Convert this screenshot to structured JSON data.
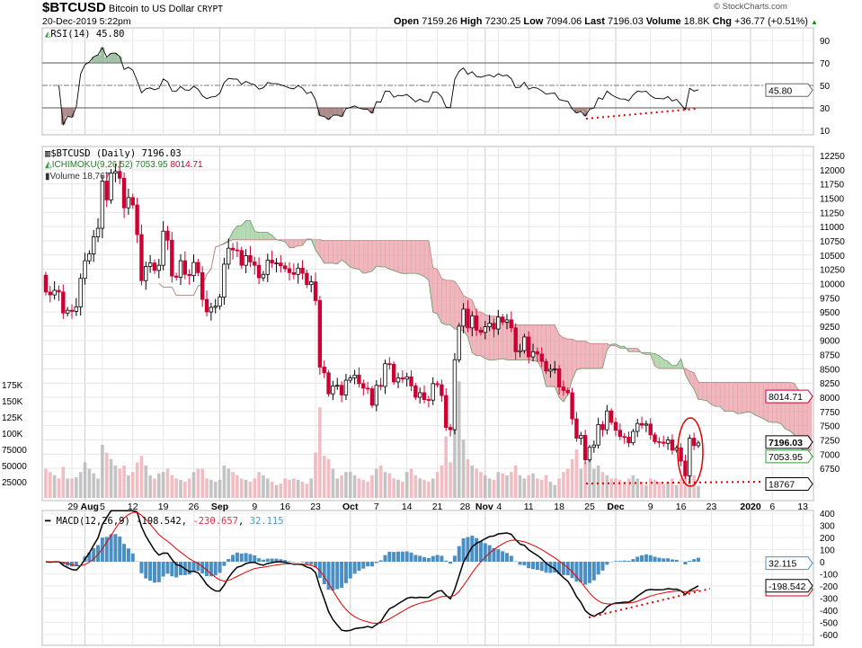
{
  "header": {
    "symbol": "$BTCUSD",
    "name": "Bitcoin to US Dollar",
    "exchange": "CRYPT",
    "datetime": "20-Dec-2019 5:22pm",
    "watermark": "© StockCharts.com",
    "open_label": "Open",
    "open": "7159.26",
    "high_label": "High",
    "high": "7230.25",
    "low_label": "Low",
    "low": "7094.06",
    "last_label": "Last",
    "last": "7196.03",
    "volume_label": "Volume",
    "volume": "18.8K",
    "chg_label": "Chg",
    "chg": "+36.77 (+0.51%)",
    "chg_icon": "up-triangle-icon"
  },
  "legends": {
    "rsi": "RSI(14) 45.80",
    "price": "$BTCUSD (Daily) 7196.03",
    "ichimoku_name": "ICHIMOKU(9,26,52)",
    "ichimoku_a": "7053.95",
    "ichimoku_b": "8014.71",
    "volume": "Volume 18,767",
    "macd_name": "MACD(12,26,9)",
    "macd_val": "-198.542",
    "macd_signal": "-230.657",
    "macd_hist": "32.115"
  },
  "tags": {
    "rsi": "45.80",
    "ichimoku_b": "8014.71",
    "last": "7196.03",
    "ichimoku_a": "7053.95",
    "volume": "18767",
    "macd_hist": "32.115",
    "macd": "-198.542"
  },
  "colors": {
    "up_candle": "#ffffff",
    "down_candle": "#cc0033",
    "cloud_bull": "#9fcf9f",
    "cloud_bear": "#e8a0a8",
    "volume_up": "#b8b8b8",
    "volume_down": "#f0b0b8",
    "macd_line": "#000000",
    "signal_line": "#e00000",
    "histogram": "#4a8fc4",
    "annotation": "#e00000"
  },
  "chart_data": {
    "type": "candlestick",
    "start_date": "2019-07-23",
    "end_date": "2019-12-20",
    "interval": "daily",
    "close": [
      9850,
      9800,
      9880,
      9850,
      9480,
      9530,
      9510,
      9590,
      10090,
      10400,
      10520,
      10820,
      10970,
      11800,
      11470,
      11940,
      11970,
      11850,
      11330,
      11510,
      11380,
      10860,
      10050,
      10300,
      10360,
      10230,
      10320,
      10920,
      10760,
      10130,
      10110,
      10400,
      10160,
      10140,
      10370,
      10190,
      9720,
      9500,
      9580,
      9600,
      9760,
      10340,
      10620,
      10590,
      10580,
      10320,
      10490,
      10380,
      10320,
      10100,
      10160,
      10410,
      10360,
      10360,
      10310,
      10260,
      10190,
      10160,
      10270,
      10180,
      9980,
      10030,
      9700,
      8530,
      8430,
      8060,
      8200,
      8210,
      8040,
      8300,
      8340,
      8390,
      8240,
      8160,
      8150,
      7860,
      8210,
      8190,
      8590,
      8580,
      8270,
      8340,
      8320,
      8360,
      8200,
      8000,
      8080,
      7960,
      7950,
      8240,
      8220,
      8030,
      7470,
      7430,
      8660,
      9250,
      9550,
      9220,
      9430,
      9180,
      9140,
      9240,
      9300,
      9200,
      9410,
      9320,
      9360,
      9220,
      8800,
      8820,
      9060,
      8710,
      8800,
      8760,
      8630,
      8460,
      8490,
      8500,
      8180,
      8120,
      8080,
      7620,
      7280,
      7330,
      6900,
      7120,
      7160,
      7520,
      7430,
      7760,
      7560,
      7420,
      7310,
      7300,
      7200,
      7400,
      7540,
      7510,
      7530,
      7340,
      7220,
      7210,
      7190,
      7250,
      7070,
      7110,
      6880,
      6620,
      7280,
      7150,
      7196.03
    ],
    "volume_thousands": [
      45,
      40,
      35,
      30,
      48,
      30,
      30,
      32,
      40,
      55,
      45,
      38,
      30,
      82,
      70,
      60,
      50,
      45,
      50,
      35,
      40,
      55,
      65,
      50,
      35,
      30,
      38,
      40,
      45,
      35,
      30,
      28,
      25,
      30,
      40,
      45,
      45,
      30,
      28,
      25,
      28,
      50,
      45,
      40,
      35,
      30,
      28,
      25,
      30,
      40,
      35,
      30,
      25,
      20,
      22,
      30,
      28,
      30,
      28,
      25,
      22,
      30,
      70,
      140,
      65,
      60,
      45,
      30,
      35,
      40,
      40,
      35,
      30,
      28,
      25,
      35,
      45,
      50,
      40,
      38,
      30,
      28,
      25,
      40,
      45,
      35,
      30,
      28,
      25,
      30,
      40,
      50,
      95,
      55,
      120,
      180,
      90,
      60,
      50,
      45,
      40,
      35,
      30,
      28,
      40,
      38,
      35,
      40,
      50,
      35,
      30,
      35,
      38,
      30,
      28,
      35,
      25,
      20,
      30,
      40,
      45,
      60,
      75,
      45,
      55,
      70,
      45,
      50,
      40,
      35,
      30,
      30,
      28,
      25,
      30,
      35,
      30,
      25,
      20,
      30,
      28,
      25,
      22,
      25,
      30,
      20,
      30,
      45,
      55,
      35,
      18.767
    ],
    "x_ticks": [
      "29",
      "Aug",
      "5",
      "12",
      "19",
      "26",
      "Sep",
      "9",
      "16",
      "23",
      "Oct",
      "7",
      "14",
      "21",
      "28",
      "Nov",
      "4",
      "11",
      "18",
      "25",
      "Dec",
      "9",
      "16",
      "23",
      "2020",
      "6",
      "13"
    ],
    "price_ticks": [
      "12250",
      "12000",
      "11750",
      "11500",
      "11250",
      "11000",
      "10750",
      "10500",
      "10250",
      "10000",
      "9750",
      "9500",
      "9250",
      "9000",
      "8750",
      "8500",
      "8250",
      "8000",
      "7750",
      "7500",
      "7250",
      "7000",
      "6750"
    ],
    "volume_ticks": [
      "175K",
      "150K",
      "125K",
      "100K",
      "75000",
      "50000",
      "25000"
    ],
    "rsi_ticks": [
      "90",
      "70",
      "50",
      "30",
      "10"
    ],
    "macd_ticks": [
      "400",
      "300",
      "200",
      "100",
      "0",
      "-100",
      "-200",
      "-300",
      "-400",
      "-500",
      "-600"
    ],
    "rsi_levels": [
      70,
      50,
      30
    ],
    "price_range": [
      6400,
      12400
    ],
    "rsi_range": [
      0,
      100
    ],
    "macd_range": [
      -600,
      400
    ]
  }
}
